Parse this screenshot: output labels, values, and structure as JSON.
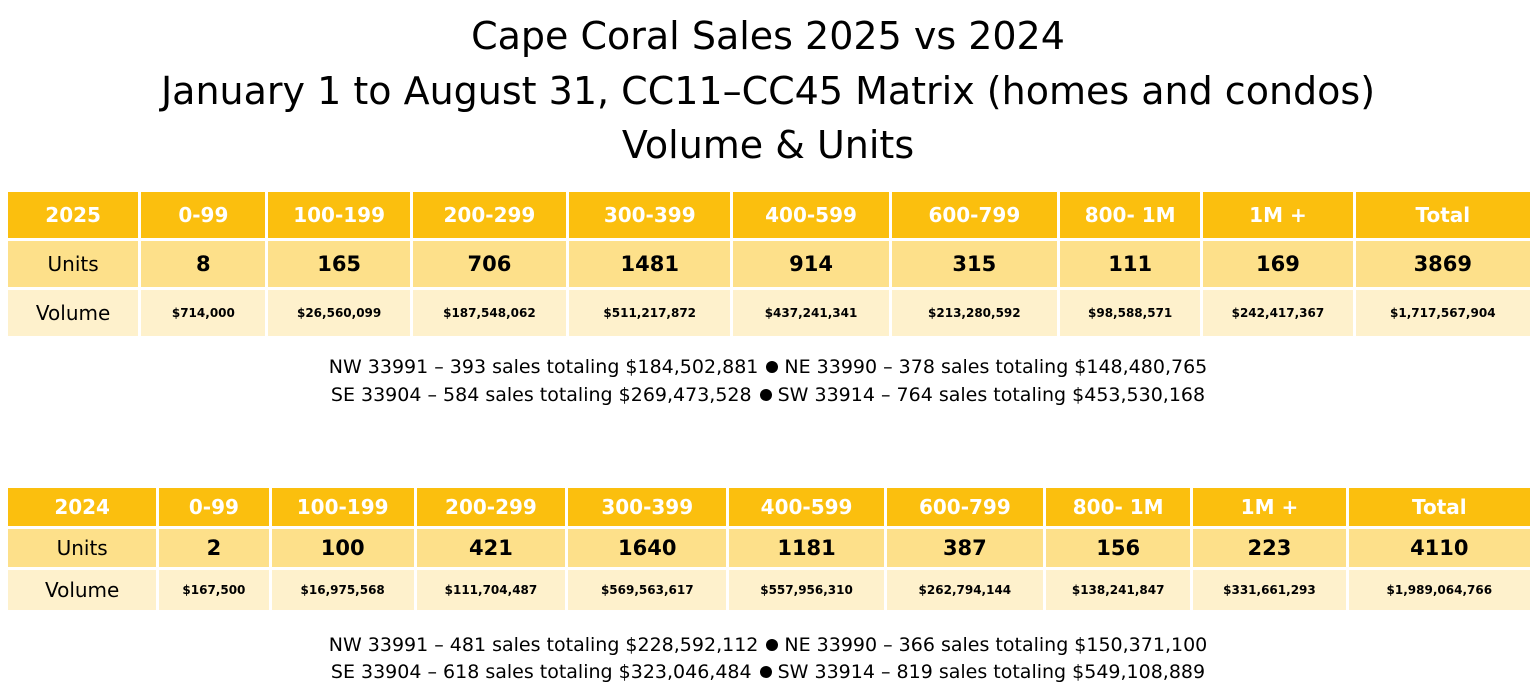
{
  "title": {
    "line1": "Cape Coral Sales  2025 vs 2024",
    "line2": "January 1 to August 31, CC11–CC45 Matrix (homes and condos)",
    "line3": "Volume & Units"
  },
  "colors": {
    "header_bg": "#fbbf0e",
    "units_bg": "#fde08a",
    "volume_bg": "#fef1cc"
  },
  "table2025": {
    "year": "2025",
    "ranges": [
      "0-99",
      "100-199",
      "200-299",
      "300-399",
      "400-599",
      "600-799",
      "800- 1M",
      "1M +",
      "Total"
    ],
    "units_label": "Units",
    "units": [
      "8",
      "165",
      "706",
      "1481",
      "914",
      "315",
      "111",
      "169",
      "3869"
    ],
    "volume_label": "Volume",
    "volume": [
      "$714,000",
      "$26,560,099",
      "$187,548,062",
      "$511,217,872",
      "$437,241,341",
      "$213,280,592",
      "$98,588,571",
      "$242,417,367",
      "$1,717,567,904"
    ],
    "zip": {
      "nw": "NW 33991 – 393 sales totaling $184,502,881",
      "ne": "NE 33990 – 378 sales totaling $148,480,765",
      "se": "SE 33904 – 584 sales totaling $269,473,528",
      "sw": "SW 33914 – 764 sales totaling $453,530,168"
    }
  },
  "table2024": {
    "year": "2024",
    "ranges": [
      "0-99",
      "100-199",
      "200-299",
      "300-399",
      "400-599",
      "600-799",
      "800- 1M",
      "1M +",
      "Total"
    ],
    "units_label": "Units",
    "units": [
      "2",
      "100",
      "421",
      "1640",
      "1181",
      "387",
      "156",
      "223",
      "4110"
    ],
    "volume_label": "Volume",
    "volume": [
      "$167,500",
      "$16,975,568",
      "$111,704,487",
      "$569,563,617",
      "$557,956,310",
      "$262,794,144",
      "$138,241,847",
      "$331,661,293",
      "$1,989,064,766"
    ],
    "zip": {
      "nw": "NW 33991 – 481 sales totaling $228,592,112",
      "ne": "NE 33990 – 366 sales totaling $150,371,100",
      "se": "SE 33904 – 618 sales totaling $323,046,484",
      "sw": "SW 33914 – 819 sales totaling $549,108,889"
    }
  }
}
